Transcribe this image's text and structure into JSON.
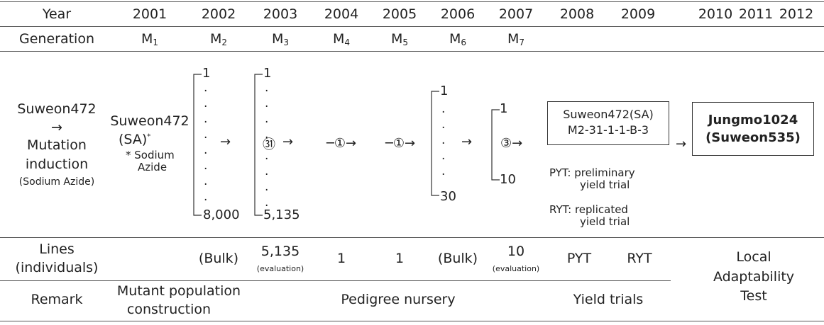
{
  "header": {
    "year_label": "Year",
    "years": [
      "2001",
      "2002",
      "2003",
      "2004",
      "2005",
      "2006",
      "2007",
      "2008",
      "2009",
      "2010",
      "2011",
      "2012"
    ]
  },
  "generation": {
    "label": "Generation",
    "letter": "M",
    "subscripts": [
      "1",
      "2",
      "3",
      "4",
      "5",
      "6",
      "7"
    ]
  },
  "flow": {
    "origin": [
      "Suweon472",
      "→",
      "Mutation",
      "induction",
      "(Sodium Azide)"
    ],
    "sa_line1": "Suweon472",
    "sa_line2": "(SA)",
    "sa_star": "*",
    "sa_note_line1": "* Sodium",
    "sa_note_line2": "Azide",
    "m2_top": "1",
    "m2_bottom": "8,000",
    "m3_top": "1",
    "m3_selected": "㉛",
    "m3_bottom": "5,135",
    "m4_label": "─①→",
    "m5_label": "─①→",
    "m6_top": "1",
    "m6_bottom": "30",
    "m7_top": "1",
    "m7_selected": "③→",
    "m7_bottom": "10",
    "arrow": "→",
    "line_box": [
      "Suweon472(SA)",
      "M2-31-1-1-B-3"
    ],
    "pyt_note": [
      "PYT:  preliminary",
      "yield trial"
    ],
    "ryt_note": [
      "RYT:  replicated",
      "yield trial"
    ],
    "final": [
      "Jungmo1024",
      "(Suweon535)"
    ]
  },
  "lines_row": {
    "label": [
      "Lines",
      "(individuals)"
    ],
    "y2002": "(Bulk)",
    "y2003": "5,135",
    "y2003_note": "(evaluation)",
    "y2004": "1",
    "y2005": "1",
    "y2006": "(Bulk)",
    "y2007": "10",
    "y2007_note": "(evaluation)",
    "y2008": "PYT",
    "y2009": "RYT"
  },
  "remark_row": {
    "label": "Remark",
    "mutant": [
      "Mutant  population",
      "construction"
    ],
    "pedigree": "Pedigree  nursery",
    "yield": "Yield  trials",
    "local": [
      "Local",
      "Adaptability",
      "Test"
    ]
  }
}
